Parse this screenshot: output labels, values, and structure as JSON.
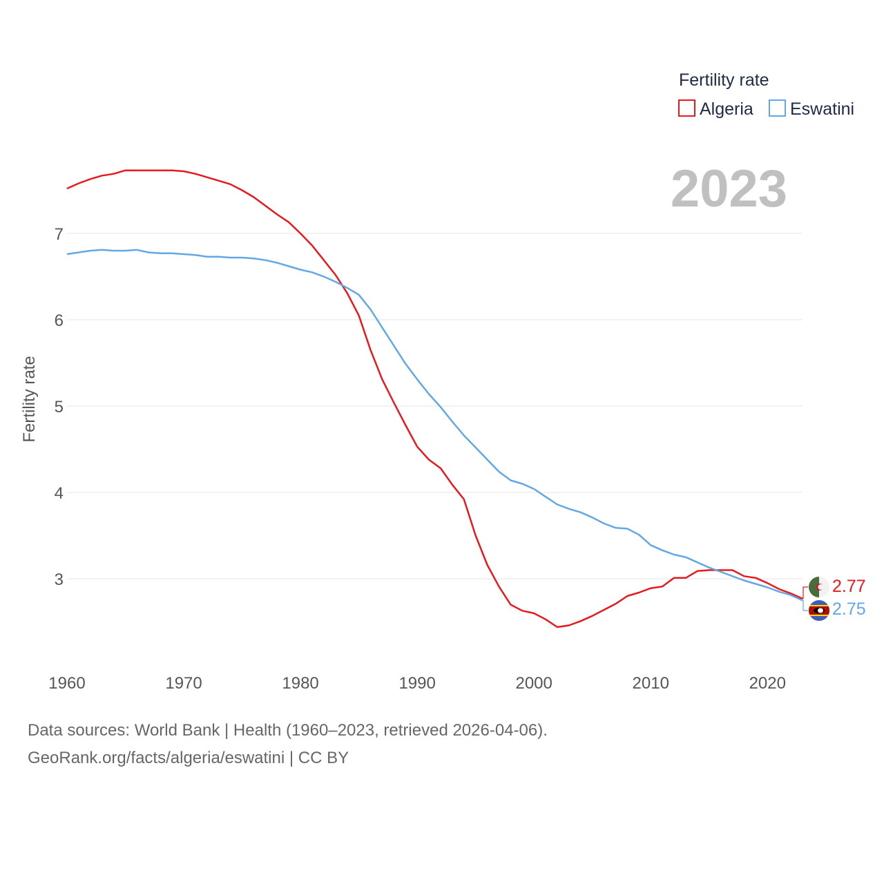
{
  "chart_data": {
    "type": "line",
    "title": "",
    "ylabel": "Fertility rate",
    "xlabel": "",
    "xlim": [
      1960,
      2023
    ],
    "ylim": [
      2,
      7.8
    ],
    "x_ticks": [
      1960,
      1970,
      1980,
      1990,
      2000,
      2010,
      2020
    ],
    "y_ticks": [
      3,
      4,
      5,
      6,
      7
    ],
    "current_year": "2023",
    "legend_title": "Fertility rate",
    "x": [
      1960,
      1961,
      1962,
      1963,
      1964,
      1965,
      1966,
      1967,
      1968,
      1969,
      1970,
      1971,
      1972,
      1973,
      1974,
      1975,
      1976,
      1977,
      1978,
      1979,
      1980,
      1981,
      1982,
      1983,
      1984,
      1985,
      1986,
      1987,
      1988,
      1989,
      1990,
      1991,
      1992,
      1993,
      1994,
      1995,
      1996,
      1997,
      1998,
      1999,
      2000,
      2001,
      2002,
      2003,
      2004,
      2005,
      2006,
      2007,
      2008,
      2009,
      2010,
      2011,
      2012,
      2013,
      2014,
      2015,
      2016,
      2017,
      2018,
      2019,
      2020,
      2021,
      2022,
      2023
    ],
    "series": [
      {
        "name": "Algeria",
        "color": "#e8191c",
        "end_label": "2.77",
        "values": [
          7.52,
          7.58,
          7.63,
          7.67,
          7.69,
          7.73,
          7.73,
          7.73,
          7.73,
          7.73,
          7.72,
          7.69,
          7.65,
          7.61,
          7.57,
          7.5,
          7.42,
          7.32,
          7.22,
          7.13,
          7.0,
          6.86,
          6.69,
          6.52,
          6.31,
          6.05,
          5.65,
          5.31,
          5.04,
          4.78,
          4.53,
          4.38,
          4.28,
          4.09,
          3.92,
          3.5,
          3.16,
          2.91,
          2.7,
          2.63,
          2.6,
          2.53,
          2.44,
          2.46,
          2.51,
          2.57,
          2.64,
          2.71,
          2.8,
          2.84,
          2.89,
          2.91,
          3.01,
          3.01,
          3.09,
          3.1,
          3.1,
          3.1,
          3.03,
          3.01,
          2.95,
          2.88,
          2.83,
          2.77
        ]
      },
      {
        "name": "Eswatini",
        "color": "#62a8e5",
        "end_label": "2.75",
        "values": [
          6.76,
          6.78,
          6.8,
          6.81,
          6.8,
          6.8,
          6.81,
          6.78,
          6.77,
          6.77,
          6.76,
          6.75,
          6.73,
          6.73,
          6.72,
          6.72,
          6.71,
          6.69,
          6.66,
          6.62,
          6.58,
          6.55,
          6.5,
          6.44,
          6.37,
          6.29,
          6.12,
          5.91,
          5.7,
          5.49,
          5.31,
          5.14,
          4.99,
          4.82,
          4.66,
          4.52,
          4.38,
          4.24,
          4.14,
          4.1,
          4.04,
          3.95,
          3.86,
          3.81,
          3.77,
          3.71,
          3.64,
          3.59,
          3.58,
          3.51,
          3.39,
          3.33,
          3.28,
          3.25,
          3.19,
          3.13,
          3.08,
          3.03,
          2.98,
          2.94,
          2.9,
          2.85,
          2.81,
          2.75
        ]
      }
    ]
  },
  "footer": {
    "sources": "Data sources: World Bank | Health (1960–2023, retrieved 2026-04-06).",
    "credit": "GeoRank.org/facts/algeria/eswatini | CC BY"
  },
  "flags": {
    "algeria": {
      "green": "#4a6b3a",
      "white": "#f2f2f2",
      "red": "#d21034"
    },
    "eswatini": {
      "blue": "#3e5eb9",
      "yellow": "#ffd900",
      "red": "#b10c0c",
      "black": "#000000"
    }
  }
}
